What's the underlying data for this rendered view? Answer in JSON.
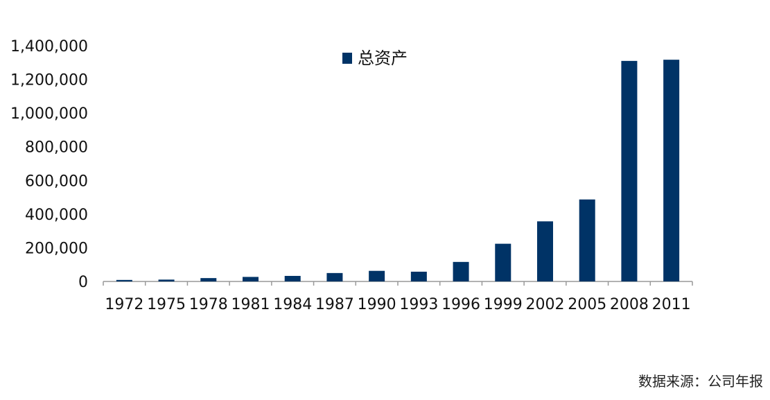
{
  "chart_data": {
    "type": "bar",
    "categories": [
      "1972",
      "1975",
      "1978",
      "1981",
      "1984",
      "1987",
      "1990",
      "1993",
      "1996",
      "1999",
      "2002",
      "2005",
      "2008",
      "2011"
    ],
    "series": [
      {
        "name": "总资产",
        "values": [
          9000,
          11000,
          20000,
          27000,
          33000,
          50000,
          63000,
          58000,
          116000,
          224000,
          357000,
          487000,
          1310000,
          1317000
        ]
      }
    ],
    "ylim": [
      0,
      1400000
    ],
    "yticks": [
      0,
      200000,
      400000,
      600000,
      800000,
      1000000,
      1200000,
      1400000
    ],
    "ytick_labels": [
      "0",
      "200,000",
      "400,000",
      "600,000",
      "800,000",
      "1,000,000",
      "1,200,000",
      "1,400,000"
    ],
    "title": "",
    "xlabel": "",
    "ylabel": "",
    "grid": false,
    "legend_position": "top-center",
    "bar_color": "#003366",
    "axis_color": "#999999"
  },
  "footer": {
    "source": "数据来源：公司年报"
  }
}
